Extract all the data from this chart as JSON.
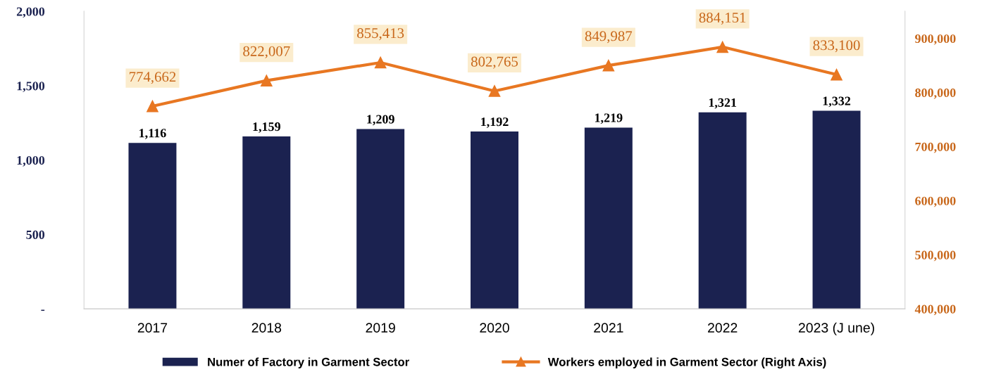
{
  "chart_data": {
    "type": "bar",
    "categories": [
      "2017",
      "2018",
      "2019",
      "2020",
      "2021",
      "2022",
      "2023 (J une)"
    ],
    "series": [
      {
        "name": "Numer of Factory in Garment Sector",
        "color": "#1b2250",
        "values": [
          1116,
          1159,
          1209,
          1192,
          1219,
          1321,
          1332
        ],
        "value_labels": [
          "1,116",
          "1,159",
          "1,209",
          "1,192",
          "1,219",
          "1,321",
          "1,332"
        ]
      },
      {
        "name": "Workers employed in Garment Sector (Right Axis)",
        "type": "line",
        "axis": "y2",
        "color": "#e87722",
        "marker": "triangle",
        "values": [
          774662,
          822007,
          855413,
          802765,
          849987,
          884151,
          833100
        ],
        "value_labels": [
          "774,662",
          "822,007",
          "855,413",
          "802,765",
          "849,987",
          "884,151",
          "833,100"
        ]
      }
    ],
    "ylim": [
      0,
      2000
    ],
    "yticks": [
      {
        "value": 0,
        "label": "-"
      },
      {
        "value": 500,
        "label": "500"
      },
      {
        "value": 1000,
        "label": "1,000"
      },
      {
        "value": 1500,
        "label": "1,500"
      },
      {
        "value": 2000,
        "label": "2,000"
      }
    ],
    "y2lim": [
      400000,
      950000
    ],
    "y2ticks": [
      {
        "value": 400000,
        "label": "400,000"
      },
      {
        "value": 500000,
        "label": "500,000"
      },
      {
        "value": 600000,
        "label": "600,000"
      },
      {
        "value": 700000,
        "label": "700,000"
      },
      {
        "value": 800000,
        "label": "800,000"
      },
      {
        "value": 900000,
        "label": "900,000"
      }
    ],
    "grid": false,
    "legend": "bottom"
  }
}
